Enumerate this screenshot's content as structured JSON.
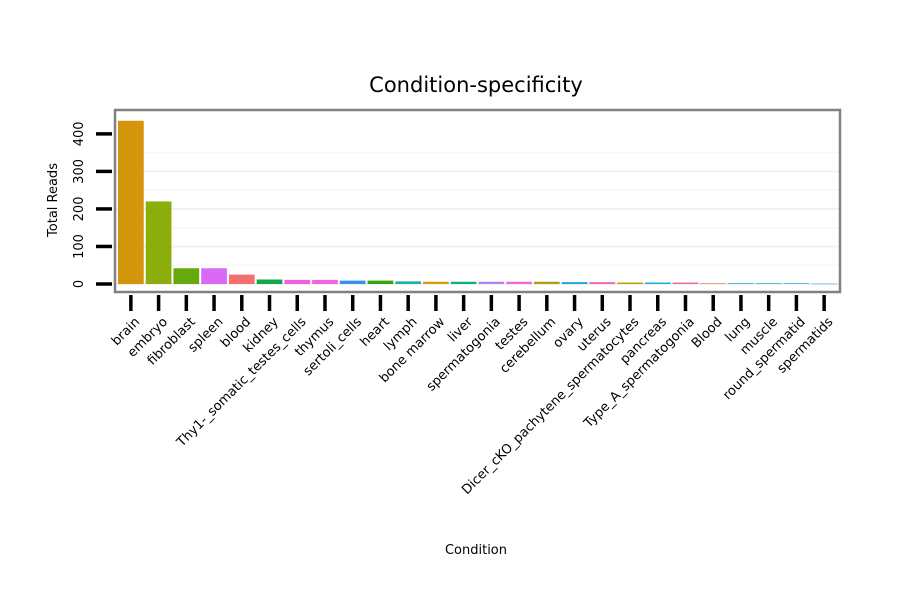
{
  "chart_data": {
    "type": "bar",
    "title": "Condition-specificity",
    "xlabel": "Condition",
    "ylabel": "Total Reads",
    "ylim": [
      0,
      445
    ],
    "yticks": [
      0,
      100,
      200,
      300,
      400
    ],
    "categories": [
      "brain",
      "embryo",
      "fibroblast",
      "spleen",
      "blood",
      "kidney",
      "Thy1-_somatic_testes_cells",
      "thymus",
      "sertoli_cells",
      "heart",
      "lymph",
      "bone marrow",
      "liver",
      "spermatogonia",
      "testes",
      "cerebellum",
      "ovary",
      "uterus",
      "Dicer_cKO_pachytene_spermatocytes",
      "pancreas",
      "Type_A_spermatogonia",
      "Blood",
      "lung",
      "muscle",
      "round_spermatid",
      "spermatids"
    ],
    "values": [
      435,
      220,
      42,
      42,
      25,
      12,
      11,
      11,
      9,
      9,
      7,
      6,
      6,
      6,
      6,
      6,
      5,
      5,
      4,
      4,
      4,
      2,
      2,
      2,
      2,
      1
    ],
    "colors": [
      "#D4940B",
      "#8CAE0A",
      "#67A90C",
      "#D86AF5",
      "#F56F6C",
      "#10A84F",
      "#F562E0",
      "#F066DE",
      "#3A8EF0",
      "#35A40E",
      "#19B5A1",
      "#D49E0C",
      "#10B07E",
      "#B181F2",
      "#EE6AD9",
      "#A9A20B",
      "#19A6E4",
      "#F166B7",
      "#B3A30E",
      "#14AFE0",
      "#F46AA6",
      "#E68665",
      "#10B4B7",
      "#19B6C1",
      "#26AFDA",
      "#5DA9EE"
    ]
  }
}
